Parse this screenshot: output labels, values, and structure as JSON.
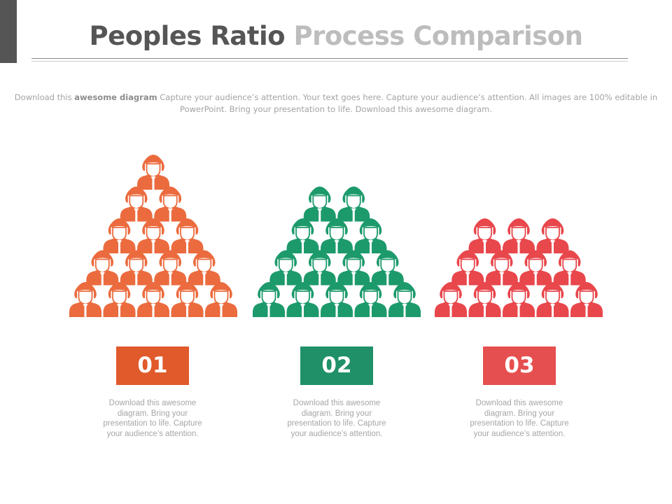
{
  "header": {
    "title_part1": "Peoples Ratio",
    "title_part2": "Process Comparison"
  },
  "intro": {
    "lead": "Download this ",
    "bold": "awesome diagram",
    "rest": " Capture your audience’s attention. Your text goes here. Capture your audience’s attention. All images are 100% editable in PowerPoint. Bring your presentation to life. Download this awesome diagram."
  },
  "groups": [
    {
      "number": "01",
      "color": "#e05a2b",
      "icon_color": "#eb6b3e",
      "rows": [
        1,
        2,
        3,
        4,
        5
      ],
      "description": "Download this awesome diagram. Bring your presentation to life. Capture your audience’s attention."
    },
    {
      "number": "02",
      "color": "#209068",
      "icon_color": "#1d9a6c",
      "rows": [
        2,
        3,
        4,
        5
      ],
      "description": "Download this awesome diagram. Bring your presentation to life. Capture your audience’s attention."
    },
    {
      "number": "03",
      "color": "#e64f4f",
      "icon_color": "#e8474c",
      "rows": [
        3,
        4,
        5
      ],
      "description": "Download this awesome diagram. Bring your presentation to life. Capture your audience’s attention."
    }
  ],
  "icons": {
    "person": "person-icon"
  }
}
